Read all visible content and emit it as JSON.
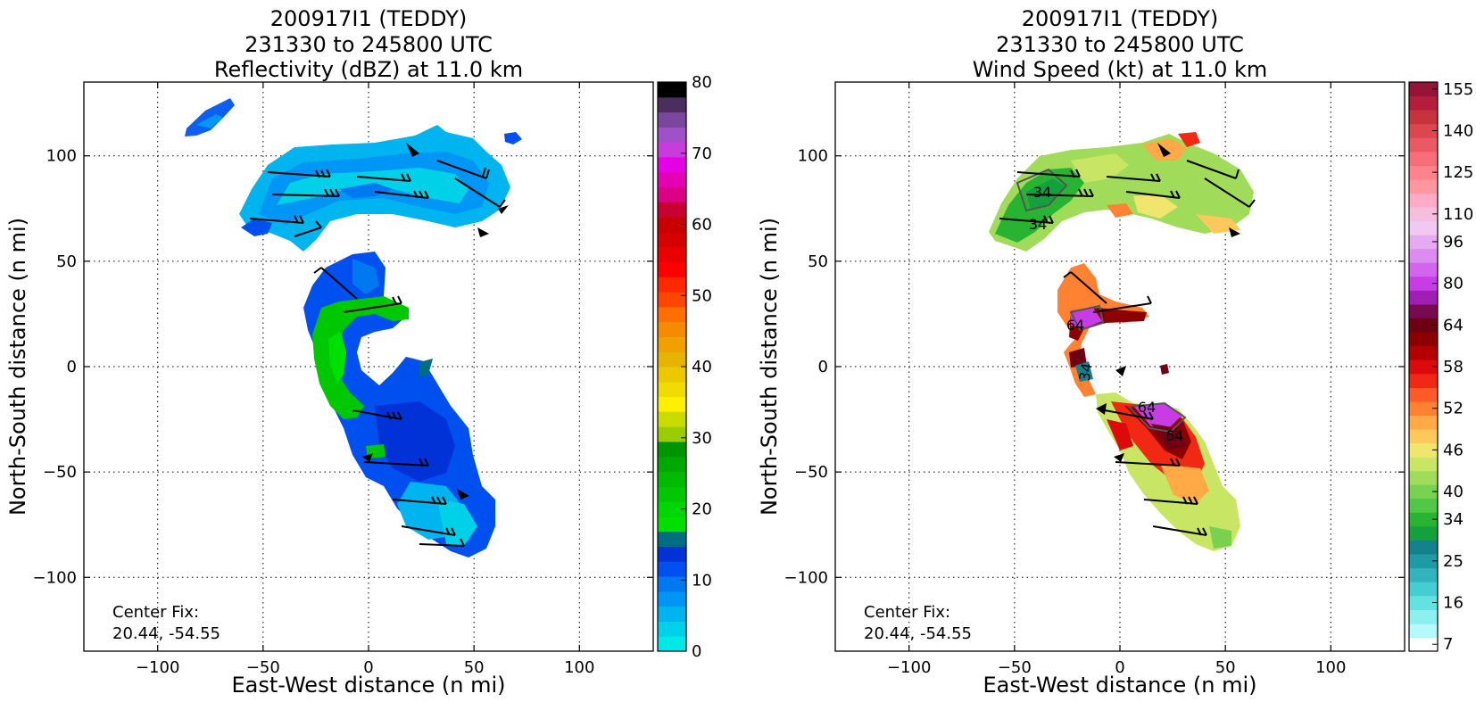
{
  "panels": [
    {
      "id": "reflectivity",
      "title_lines": [
        "200917I1 (TEDDY)",
        "231330 to 245800 UTC",
        "Reflectivity (dBZ) at 11.0 km"
      ],
      "xlabel": "East-West distance (n mi)",
      "ylabel": "North-South distance (n mi)",
      "center_fix_label": "Center Fix:",
      "center_fix_value": "20.44, -54.55",
      "colorbar": {
        "ticks": [
          "0",
          "10",
          "20",
          "30",
          "40",
          "50",
          "60",
          "70",
          "80"
        ],
        "colors": [
          "#00e8e8",
          "#00d0e8",
          "#00b4f0",
          "#0096f5",
          "#0078f0",
          "#0050f0",
          "#0032d8",
          "#006e82",
          "#00e000",
          "#00d600",
          "#00c800",
          "#00ba00",
          "#00a800",
          "#009400",
          "#9acd00",
          "#c8dc00",
          "#fff000",
          "#f0dc00",
          "#ebc800",
          "#e6b400",
          "#f0a000",
          "#f58c00",
          "#ff6e00",
          "#ff4600",
          "#ff2800",
          "#ff0000",
          "#eb0000",
          "#d70000",
          "#c80000",
          "#c80032",
          "#dc0082",
          "#e600b4",
          "#e600e6",
          "#c83cdc",
          "#a050c8",
          "#7a46a0",
          "#4b2d5f",
          "#000000"
        ]
      }
    },
    {
      "id": "windspeed",
      "title_lines": [
        "200917I1 (TEDDY)",
        "231330 to 245800 UTC",
        "Wind Speed (kt) at 11.0 km"
      ],
      "xlabel": "East-West distance (n mi)",
      "ylabel": "North-South distance (n mi)",
      "center_fix_label": "Center Fix:",
      "center_fix_value": "20.44, -54.55",
      "contour_labels": [
        "34",
        "34",
        "64",
        "34",
        "64",
        "64"
      ],
      "colorbar": {
        "ticks": [
          "7",
          "16",
          "25",
          "34",
          "40",
          "46",
          "52",
          "58",
          "64",
          "80",
          "96",
          "110",
          "125",
          "140",
          "155"
        ],
        "colors": [
          "#ffffff",
          "#b4fafa",
          "#8cf0f0",
          "#64e1e1",
          "#46cdd2",
          "#32b4be",
          "#1e9ba5",
          "#14828c",
          "#14a03c",
          "#28b432",
          "#50c846",
          "#78d250",
          "#a0dc5a",
          "#c8e664",
          "#f0e66e",
          "#ffc85a",
          "#ffaa46",
          "#ff8232",
          "#ff5a28",
          "#f02814",
          "#dc0a0a",
          "#b40000",
          "#8c0000",
          "#6e0014",
          "#780a50",
          "#a01eb4",
          "#c83ce6",
          "#d264ee",
          "#dc8cf0",
          "#e6aaf0",
          "#f0c8f0",
          "#f5bedc",
          "#ffaac8",
          "#ff96a0",
          "#ff828c",
          "#f56e78",
          "#eb5a64",
          "#dc4650",
          "#c8323c",
          "#b41e3c",
          "#961437"
        ]
      }
    }
  ],
  "chart_data": [
    {
      "type": "heatmap",
      "title": "200917I1 (TEDDY) 231330 to 245800 UTC Reflectivity (dBZ) at 11.0 km",
      "xlabel": "East-West distance (n mi)",
      "ylabel": "North-South distance (n mi)",
      "xlim": [
        -135,
        135
      ],
      "ylim": [
        -135,
        135
      ],
      "xticks": [
        -100,
        -50,
        0,
        50,
        100
      ],
      "yticks": [
        -100,
        -50,
        0,
        50,
        100
      ],
      "grid": true,
      "colorbar_range": [
        0,
        80
      ],
      "colorbar_ticks": [
        0,
        10,
        20,
        30,
        40,
        50,
        60,
        70,
        80
      ],
      "center_fix": [
        20.44,
        -54.55
      ]
    },
    {
      "type": "heatmap",
      "title": "200917I1 (TEDDY) 231330 to 245800 UTC Wind Speed (kt) at 11.0 km",
      "xlabel": "East-West distance (n mi)",
      "ylabel": "North-South distance (n mi)",
      "xlim": [
        -135,
        135
      ],
      "ylim": [
        -135,
        135
      ],
      "xticks": [
        -100,
        -50,
        0,
        50,
        100
      ],
      "yticks": [
        -100,
        -50,
        0,
        50,
        100
      ],
      "grid": true,
      "colorbar_ticks": [
        7,
        16,
        25,
        34,
        40,
        46,
        52,
        58,
        64,
        80,
        96,
        110,
        125,
        140,
        155
      ],
      "center_fix": [
        20.44,
        -54.55
      ]
    }
  ]
}
